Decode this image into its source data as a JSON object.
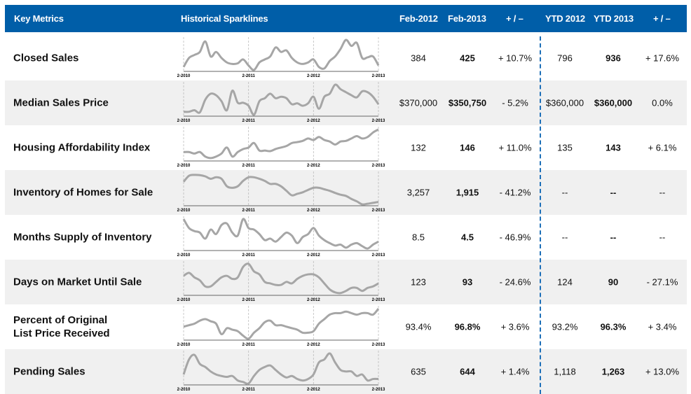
{
  "header": {
    "key_metrics": "Key Metrics",
    "sparklines": "Historical Sparklines",
    "feb2012": "Feb-2012",
    "feb2013": "Feb-2013",
    "change1": "+ / –",
    "ytd2012": "YTD 2012",
    "ytd2013": "YTD 2013",
    "change2": "+ / –"
  },
  "sparkline_axis_labels": [
    "2-2010",
    "2-2011",
    "2-2012",
    "2-2013"
  ],
  "colors": {
    "header_bg": "#005ea8",
    "row_alt_bg": "#f0f0f0",
    "sparkline": "#a6a6a6",
    "divider": "#1d6fb8"
  },
  "rows": [
    {
      "label": "Closed Sales",
      "feb2012": "384",
      "feb2013": "425",
      "change": "+ 10.7%",
      "ytd2012": "796",
      "ytd2013": "936",
      "ytd_change": "+ 17.6%",
      "spark": [
        10,
        40,
        50,
        60,
        95,
        45,
        60,
        40,
        25,
        20,
        22,
        35,
        15,
        0,
        25,
        35,
        45,
        75,
        60,
        65,
        40,
        25,
        20,
        25,
        35,
        10,
        5,
        30,
        45,
        70,
        100,
        80,
        90,
        40,
        42,
        45,
        15
      ]
    },
    {
      "label": "Median Sales Price",
      "feb2012": "$370,000",
      "feb2013": "$350,750",
      "change": "- 5.2%",
      "ytd2012": "$360,000",
      "ytd2013": "$360,000",
      "ytd_change": "0.0%",
      "spark": [
        10,
        10,
        15,
        8,
        50,
        70,
        65,
        45,
        15,
        80,
        40,
        40,
        30,
        0,
        45,
        55,
        70,
        55,
        60,
        55,
        35,
        38,
        30,
        38,
        60,
        20,
        60,
        70,
        100,
        85,
        75,
        65,
        58,
        78,
        75,
        60,
        35
      ]
    },
    {
      "label": "Housing Affordability Index",
      "feb2012": "132",
      "feb2013": "146",
      "change": "+ 11.0%",
      "ytd2012": "135",
      "ytd2013": "143",
      "ytd_change": "+ 6.1%",
      "spark": [
        25,
        25,
        20,
        25,
        10,
        5,
        10,
        20,
        40,
        10,
        25,
        35,
        40,
        55,
        30,
        30,
        28,
        35,
        40,
        45,
        55,
        58,
        62,
        70,
        65,
        75,
        65,
        60,
        50,
        60,
        62,
        70,
        78,
        70,
        75,
        90,
        100
      ]
    },
    {
      "label": "Inventory of Homes for Sale",
      "feb2012": "3,257",
      "feb2013": "1,915",
      "change": "- 41.2%",
      "ytd2012": "--",
      "ytd2013": "--",
      "ytd_change": "--",
      "spark": [
        75,
        95,
        98,
        97,
        93,
        85,
        90,
        85,
        60,
        55,
        60,
        78,
        90,
        90,
        85,
        78,
        68,
        68,
        60,
        45,
        30,
        35,
        40,
        48,
        55,
        55,
        50,
        45,
        38,
        32,
        28,
        18,
        10,
        0,
        2,
        5,
        8
      ]
    },
    {
      "label": "Months Supply of Inventory",
      "feb2012": "8.5",
      "feb2013": "4.5",
      "change": "- 46.9%",
      "ytd2012": "--",
      "ytd2013": "--",
      "ytd_change": "--",
      "spark": [
        100,
        70,
        60,
        55,
        35,
        65,
        50,
        80,
        85,
        55,
        45,
        100,
        70,
        65,
        50,
        30,
        35,
        25,
        40,
        55,
        45,
        20,
        40,
        50,
        70,
        45,
        30,
        20,
        12,
        15,
        5,
        15,
        20,
        10,
        2,
        15,
        25
      ]
    },
    {
      "label": "Days on Market Until Sale",
      "feb2012": "123",
      "feb2013": "93",
      "change": "- 24.6%",
      "ytd2012": "124",
      "ytd2013": "90",
      "ytd_change": "- 27.1%",
      "spark": [
        60,
        70,
        55,
        45,
        25,
        25,
        40,
        55,
        60,
        50,
        55,
        90,
        100,
        75,
        65,
        40,
        35,
        30,
        30,
        40,
        35,
        50,
        60,
        65,
        65,
        55,
        35,
        15,
        5,
        3,
        10,
        20,
        20,
        10,
        20,
        25,
        35
      ]
    },
    {
      "label": "Percent of Original\nList Price Received",
      "label_lines": [
        "Percent of Original",
        "List Price Received"
      ],
      "feb2012": "93.4%",
      "feb2013": "96.8%",
      "change": "+ 3.6%",
      "ytd2012": "93.2%",
      "ytd2013": "96.3%",
      "ytd_change": "+ 3.4%",
      "spark": [
        40,
        45,
        50,
        60,
        65,
        58,
        50,
        15,
        35,
        30,
        25,
        10,
        0,
        20,
        35,
        55,
        60,
        45,
        45,
        40,
        35,
        30,
        20,
        20,
        25,
        50,
        65,
        80,
        85,
        85,
        90,
        85,
        80,
        85,
        85,
        80,
        100
      ]
    },
    {
      "label": "Pending Sales",
      "feb2012": "635",
      "feb2013": "644",
      "change": "+ 1.4%",
      "ytd2012": "1,118",
      "ytd2013": "1,263",
      "ytd_change": "+ 13.0%",
      "spark": [
        30,
        80,
        95,
        65,
        55,
        40,
        30,
        25,
        22,
        25,
        10,
        5,
        0,
        25,
        45,
        55,
        60,
        45,
        30,
        20,
        25,
        15,
        10,
        15,
        30,
        70,
        80,
        100,
        70,
        45,
        40,
        40,
        25,
        30,
        10,
        15,
        15
      ]
    }
  ]
}
